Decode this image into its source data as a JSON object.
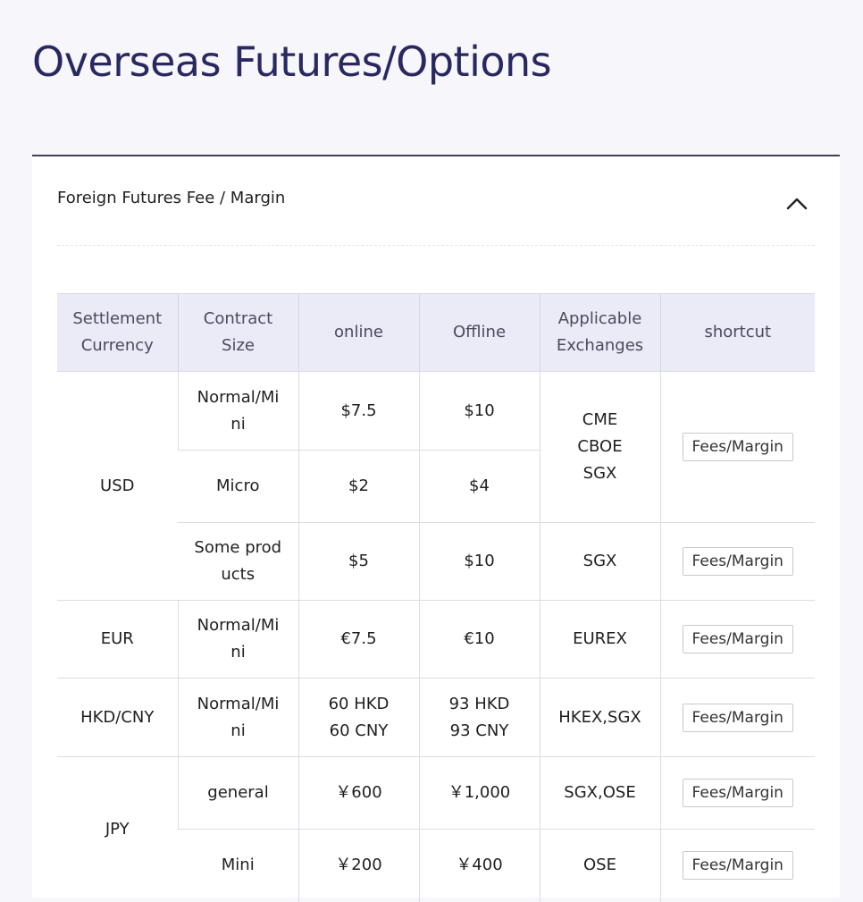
{
  "page_title": "Overseas Futures/Options",
  "panel": {
    "title": "Foreign Futures Fee / Margin",
    "toggle_icon": "chevron-up-icon"
  },
  "table": {
    "headers": [
      "Settlement\nCurrency",
      "Contract\nSize",
      "online",
      "Offline",
      "Applicable\nExchanges",
      "shortcut"
    ],
    "button_label": "Fees/Margin",
    "groups": [
      {
        "currency": "USD",
        "rows": [
          {
            "size": "Normal/Mi\nni",
            "online": "$7.5",
            "offline": "$10"
          },
          {
            "size": "Micro",
            "online": "$2",
            "offline": "$4"
          },
          {
            "size": "Some prod\nucts",
            "online": "$5",
            "offline": "$10",
            "exchanges": "SGX"
          }
        ],
        "exchanges": "CME\nCBOE\nSGX"
      },
      {
        "currency": "EUR",
        "rows": [
          {
            "size": "Normal/Mi\nni",
            "online": "€7.5",
            "offline": "€10",
            "exchanges": "EUREX"
          }
        ]
      },
      {
        "currency": "HKD/CNY",
        "rows": [
          {
            "size": "Normal/Mi\nni",
            "online": "60 HKD\n60 CNY",
            "offline": "93 HKD\n93 CNY",
            "exchanges": "HKEX,SGX"
          }
        ]
      },
      {
        "currency": "JPY",
        "rows": [
          {
            "size": "general",
            "online": "￥600",
            "offline": "￥1,000",
            "exchanges": "SGX,OSE"
          },
          {
            "size": "Mini",
            "online": "￥200",
            "offline": "￥400",
            "exchanges": "OSE"
          }
        ]
      }
    ]
  }
}
